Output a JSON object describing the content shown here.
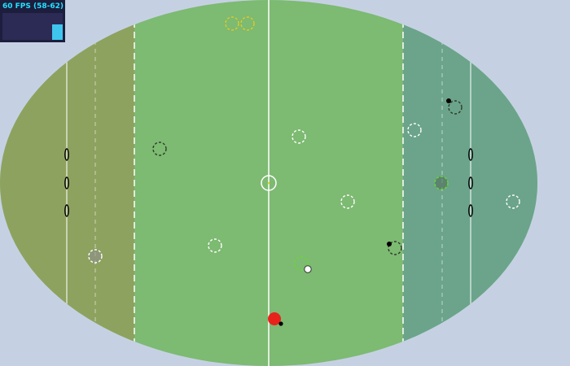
{
  "fps": {
    "label": "60 FPS (58-62)",
    "current": 60,
    "min": 58,
    "max": 62,
    "bar_fill_fraction": 0.58,
    "text_color": "#23e1ff",
    "bar_color": "#3fc6ef"
  },
  "colors": {
    "background": "#c5d1e3",
    "field_center": "#7dba72",
    "left_zone": "#8ea25f",
    "right_zone": "#6ba48a",
    "line": "#ffffff",
    "goal_post": "#000000",
    "ball_carrier": "#e8231c"
  },
  "field": {
    "left_zone_lines": [
      "solid",
      "dashed",
      "dashed"
    ],
    "right_zone_lines": [
      "dashed",
      "dashed",
      "solid"
    ],
    "center_line": "solid",
    "center_circle": true
  },
  "players": [
    {
      "id": "p1",
      "team": "yellow",
      "color": "#e2cc1f"
    },
    {
      "id": "p2",
      "team": "yellow",
      "color": "#e2cc1f"
    },
    {
      "id": "p3",
      "team": "dark",
      "color": "#2d3a2a"
    },
    {
      "id": "p4",
      "team": "white",
      "color": "#ffffff"
    },
    {
      "id": "p5",
      "team": "white",
      "color": "#ffffff"
    },
    {
      "id": "p6",
      "team": "dark",
      "color": "#2d3a2a",
      "carrying": true
    },
    {
      "id": "p7",
      "team": "white",
      "color": "#ffffff"
    },
    {
      "id": "p8",
      "team": "green",
      "color": "#6ad63a",
      "filled": true
    },
    {
      "id": "p9",
      "team": "white",
      "color": "#ffffff"
    },
    {
      "id": "p10",
      "team": "white",
      "color": "#ffffff"
    },
    {
      "id": "p11",
      "team": "dark",
      "color": "#2d3a2a",
      "carrying": true
    },
    {
      "id": "p12",
      "team": "white",
      "color": "#ffffff",
      "filled": true
    },
    {
      "id": "p13",
      "team": "green",
      "color": "#6ad63a"
    }
  ],
  "ball": {
    "color": "#ffffff"
  },
  "ball_carrier": {
    "color": "#e8231c"
  }
}
